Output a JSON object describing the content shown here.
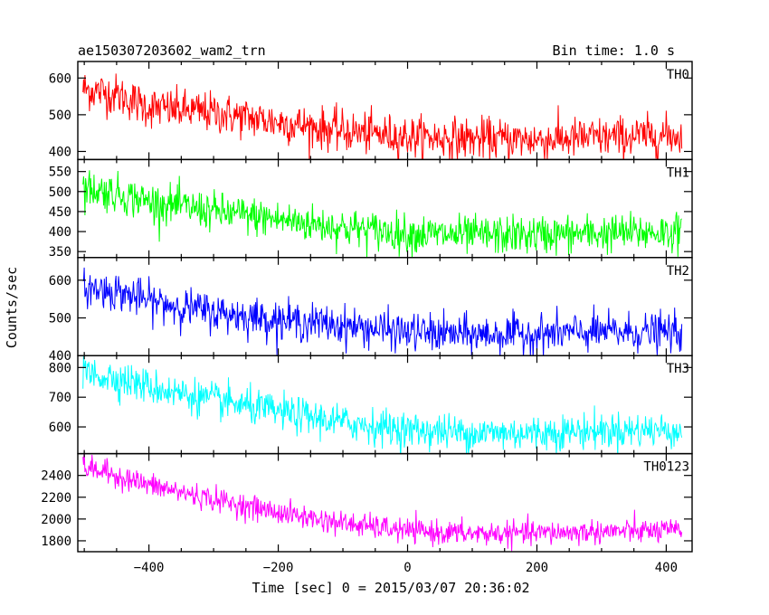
{
  "chart_data": {
    "type": "line",
    "title_left": "ae150307203602_wam2_trn",
    "title_right": "Bin time: 1.0 s",
    "xlabel": "Time [sec] 0 = 2015/03/07 20:36:02",
    "ylabel": "Counts/sec",
    "xlim": [
      -510,
      440
    ],
    "x_ticks": [
      -400,
      -200,
      0,
      200,
      400
    ],
    "x_tick_labels": [
      "−400",
      "−200",
      "0",
      "200",
      "400"
    ],
    "data_x_range": [
      -502,
      424
    ],
    "bin_time_s": 1.0,
    "grid": false,
    "panels": [
      {
        "label": "TH0",
        "color": "#ff0000",
        "ylim": [
          378,
          645
        ],
        "yticks": [
          400,
          500,
          600
        ],
        "trend": [
          [
            -502,
            570
          ],
          [
            -450,
            555
          ],
          [
            -400,
            520
          ],
          [
            -300,
            505
          ],
          [
            -200,
            480
          ],
          [
            -100,
            455
          ],
          [
            0,
            440
          ],
          [
            100,
            435
          ],
          [
            200,
            432
          ],
          [
            300,
            438
          ],
          [
            424,
            445
          ]
        ],
        "noise": 28
      },
      {
        "label": "TH1",
        "color": "#00ff00",
        "ylim": [
          335,
          580
        ],
        "yticks": [
          350,
          400,
          450,
          500,
          550
        ],
        "trend": [
          [
            -502,
            510
          ],
          [
            -450,
            495
          ],
          [
            -400,
            475
          ],
          [
            -300,
            450
          ],
          [
            -200,
            430
          ],
          [
            -100,
            410
          ],
          [
            0,
            395
          ],
          [
            100,
            390
          ],
          [
            200,
            392
          ],
          [
            300,
            395
          ],
          [
            424,
            400
          ]
        ],
        "noise": 24
      },
      {
        "label": "TH2",
        "color": "#0000ff",
        "ylim": [
          400,
          660
        ],
        "yticks": [
          400,
          500,
          600
        ],
        "trend": [
          [
            -502,
            580
          ],
          [
            -450,
            570
          ],
          [
            -400,
            545
          ],
          [
            -300,
            515
          ],
          [
            -200,
            495
          ],
          [
            -100,
            480
          ],
          [
            0,
            462
          ],
          [
            100,
            455
          ],
          [
            200,
            458
          ],
          [
            300,
            462
          ],
          [
            424,
            462
          ]
        ],
        "noise": 25
      },
      {
        "label": "TH3",
        "color": "#00ffff",
        "ylim": [
          510,
          840
        ],
        "yticks": [
          600,
          700,
          800
        ],
        "trend": [
          [
            -502,
            780
          ],
          [
            -450,
            765
          ],
          [
            -400,
            735
          ],
          [
            -300,
            690
          ],
          [
            -200,
            650
          ],
          [
            -100,
            615
          ],
          [
            0,
            590
          ],
          [
            100,
            580
          ],
          [
            200,
            580
          ],
          [
            300,
            588
          ],
          [
            424,
            590
          ]
        ],
        "noise": 30
      },
      {
        "label": "TH0123",
        "color": "#ff00ff",
        "ylim": [
          1700,
          2600
        ],
        "yticks": [
          1800,
          2000,
          2200,
          2400
        ],
        "trend": [
          [
            -502,
            2480
          ],
          [
            -450,
            2400
          ],
          [
            -400,
            2310
          ],
          [
            -300,
            2180
          ],
          [
            -200,
            2060
          ],
          [
            -100,
            1960
          ],
          [
            0,
            1890
          ],
          [
            100,
            1865
          ],
          [
            200,
            1870
          ],
          [
            300,
            1885
          ],
          [
            424,
            1890
          ]
        ],
        "noise": 55
      }
    ]
  }
}
